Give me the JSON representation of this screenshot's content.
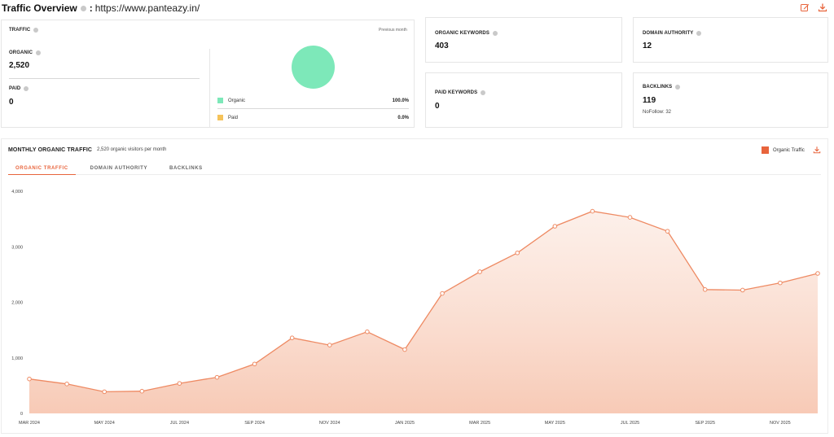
{
  "header": {
    "title": "Traffic Overview",
    "separator": ":",
    "url": "https://www.panteazy.in/",
    "icons": [
      "info-icon",
      "edit-icon",
      "download-icon"
    ]
  },
  "traffic": {
    "label": "TRAFFIC",
    "period": "Previous month",
    "organic_label": "ORGANIC",
    "organic_value": "2,520",
    "paid_label": "PAID",
    "paid_value": "0",
    "legend": [
      {
        "label": "Organic",
        "pct": "100.0%",
        "color": "#7de8b9"
      },
      {
        "label": "Paid",
        "pct": "0.0%",
        "color": "#f5c35a"
      }
    ],
    "pie": [
      {
        "name": "Organic",
        "share": 100
      },
      {
        "name": "Paid",
        "share": 0
      }
    ]
  },
  "organic_keywords": {
    "label": "ORGANIC KEYWORDS",
    "value": "403"
  },
  "paid_keywords": {
    "label": "PAID KEYWORDS",
    "value": "0"
  },
  "domain_authority": {
    "label": "DOMAIN AUTHORITY",
    "value": "12"
  },
  "backlinks": {
    "label": "BACKLINKS",
    "value": "119",
    "nofollow": "NoFollow: 32"
  },
  "monthly": {
    "title": "MONTHLY ORGANIC TRAFFIC",
    "subtitle": "2,520 organic visitors per month",
    "legend_label": "Organic Traffic",
    "tabs": [
      "ORGANIC TRAFFIC",
      "DOMAIN AUTHORITY",
      "BACKLINKS"
    ],
    "active_tab": 0
  },
  "colors": {
    "accent": "#e8643c",
    "line": "#ee8a63",
    "organic": "#7de8b9",
    "paid": "#f5c35a"
  },
  "chart_data": {
    "type": "line",
    "title": "",
    "xlabel": "",
    "ylabel": "",
    "ylim": [
      0,
      4000
    ],
    "yticks": [
      "0",
      "1,000",
      "2,000",
      "3,000",
      "4,000"
    ],
    "ytick_values": [
      0,
      1000,
      2000,
      3000,
      4000
    ],
    "x_tick_labels": [
      "MAR 2024",
      "MAY 2024",
      "JUL 2024",
      "SEP 2024",
      "NOV 2024",
      "JAN 2025",
      "MAR 2025",
      "MAY 2025",
      "JUL 2025",
      "SEP 2025",
      "NOV 2025"
    ],
    "x": [
      "MAR 2024",
      "APR 2024",
      "MAY 2024",
      "JUN 2024",
      "JUL 2024",
      "AUG 2024",
      "SEP 2024",
      "OCT 2024",
      "NOV 2024",
      "DEC 2024",
      "JAN 2025",
      "FEB 2025",
      "MAR 2025",
      "APR 2025",
      "MAY 2025",
      "JUN 2025",
      "JUL 2025",
      "AUG 2025",
      "SEP 2025",
      "OCT 2025",
      "NOV 2025",
      "DEC 2025"
    ],
    "series": [
      {
        "name": "Organic Traffic",
        "values": [
          620,
          530,
          390,
          400,
          540,
          650,
          890,
          1360,
          1230,
          1470,
          1150,
          2160,
          2550,
          2890,
          3370,
          3640,
          3530,
          3280,
          2230,
          2220,
          2350,
          2520
        ]
      }
    ],
    "grid": false,
    "legend": "top-right"
  }
}
